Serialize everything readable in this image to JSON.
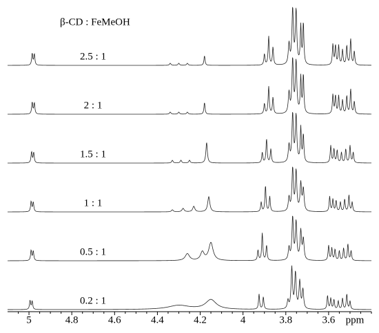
{
  "chart_data": {
    "type": "nmr-stack",
    "title": "β-CD : FeMeOH",
    "x_label": "ppm",
    "xlim": [
      5.1,
      3.4
    ],
    "xticks": [
      5.0,
      4.8,
      4.6,
      4.4,
      4.2,
      4.0,
      3.8,
      3.6
    ],
    "color": "#222222",
    "series": [
      {
        "name": "2.5 : 1",
        "x": [
          4.985,
          4.975,
          4.34,
          4.3,
          4.26,
          4.18,
          3.9,
          3.88,
          3.86,
          3.785,
          3.768,
          3.752,
          3.73,
          3.718,
          3.58,
          3.568,
          3.553,
          3.535,
          3.515,
          3.497,
          3.48
        ],
        "values": [
          17,
          16,
          3,
          3,
          3,
          14,
          16,
          42,
          26,
          30,
          80,
          78,
          55,
          60,
          30,
          28,
          28,
          22,
          28,
          38,
          20
        ],
        "widths": [
          0.003,
          0.003,
          0.004,
          0.004,
          0.004,
          0.003,
          0.003,
          0.003,
          0.003,
          0.004,
          0.004,
          0.004,
          0.003,
          0.003,
          0.003,
          0.003,
          0.003,
          0.003,
          0.003,
          0.003,
          0.003
        ]
      },
      {
        "name": "2 : 1",
        "x": [
          4.985,
          4.975,
          4.34,
          4.3,
          4.26,
          4.18,
          3.9,
          3.88,
          3.86,
          3.785,
          3.768,
          3.752,
          3.73,
          3.718,
          3.58,
          3.568,
          3.553,
          3.535,
          3.515,
          3.497,
          3.48
        ],
        "values": [
          17,
          16,
          3,
          3,
          3,
          17,
          15,
          40,
          24,
          30,
          78,
          75,
          52,
          56,
          28,
          26,
          26,
          20,
          26,
          36,
          18
        ],
        "widths": [
          0.003,
          0.003,
          0.004,
          0.004,
          0.004,
          0.003,
          0.003,
          0.003,
          0.003,
          0.004,
          0.004,
          0.004,
          0.003,
          0.003,
          0.003,
          0.003,
          0.003,
          0.003,
          0.003,
          0.003,
          0.003
        ]
      },
      {
        "name": "1.5 : 1",
        "x": [
          4.988,
          4.978,
          4.33,
          4.29,
          4.25,
          4.17,
          3.91,
          3.89,
          3.87,
          3.785,
          3.768,
          3.752,
          3.73,
          3.718,
          3.59,
          3.575,
          3.56,
          3.54,
          3.52,
          3.5,
          3.485
        ],
        "values": [
          16,
          15,
          4,
          4,
          4,
          30,
          15,
          35,
          20,
          25,
          70,
          68,
          50,
          40,
          25,
          20,
          18,
          15,
          20,
          25,
          15
        ],
        "widths": [
          0.003,
          0.003,
          0.004,
          0.004,
          0.004,
          0.004,
          0.003,
          0.003,
          0.003,
          0.004,
          0.004,
          0.004,
          0.003,
          0.003,
          0.003,
          0.003,
          0.003,
          0.003,
          0.003,
          0.003,
          0.003
        ]
      },
      {
        "name": "1 : 1",
        "x": [
          4.99,
          4.98,
          4.33,
          4.28,
          4.23,
          4.16,
          3.915,
          3.895,
          3.875,
          3.785,
          3.768,
          3.752,
          3.73,
          3.718,
          3.595,
          3.58,
          3.565,
          3.545,
          3.525,
          3.505,
          3.49
        ],
        "values": [
          15,
          14,
          3,
          5,
          8,
          22,
          14,
          38,
          22,
          20,
          62,
          58,
          40,
          32,
          22,
          18,
          16,
          14,
          18,
          24,
          14
        ],
        "widths": [
          0.003,
          0.003,
          0.005,
          0.006,
          0.006,
          0.006,
          0.003,
          0.003,
          0.003,
          0.004,
          0.004,
          0.004,
          0.004,
          0.004,
          0.003,
          0.003,
          0.003,
          0.003,
          0.003,
          0.003,
          0.003
        ]
      },
      {
        "name": "0.5 : 1",
        "x": [
          4.99,
          4.98,
          4.26,
          4.19,
          4.15,
          3.93,
          3.91,
          3.89,
          3.785,
          3.768,
          3.752,
          3.73,
          3.718,
          3.6,
          3.585,
          3.57,
          3.55,
          3.53,
          3.51,
          3.495
        ],
        "values": [
          15,
          14,
          10,
          12,
          26,
          15,
          40,
          22,
          18,
          62,
          55,
          42,
          30,
          22,
          18,
          16,
          14,
          18,
          24,
          14
        ],
        "widths": [
          0.003,
          0.003,
          0.012,
          0.01,
          0.012,
          0.003,
          0.003,
          0.003,
          0.004,
          0.004,
          0.004,
          0.004,
          0.004,
          0.003,
          0.003,
          0.003,
          0.003,
          0.003,
          0.003,
          0.003
        ]
      },
      {
        "name": "0.2 : 1",
        "x": [
          4.995,
          4.985,
          4.3,
          4.15,
          3.925,
          3.905,
          3.79,
          3.772,
          3.755,
          3.735,
          3.72,
          3.605,
          3.59,
          3.575,
          3.555,
          3.535,
          3.515,
          3.5
        ],
        "values": [
          13,
          12,
          6,
          14,
          22,
          18,
          12,
          60,
          52,
          40,
          28,
          20,
          16,
          14,
          12,
          16,
          22,
          12
        ],
        "widths": [
          0.003,
          0.003,
          0.06,
          0.03,
          0.003,
          0.003,
          0.004,
          0.004,
          0.004,
          0.004,
          0.004,
          0.003,
          0.003,
          0.003,
          0.003,
          0.003,
          0.003,
          0.003
        ]
      }
    ]
  }
}
